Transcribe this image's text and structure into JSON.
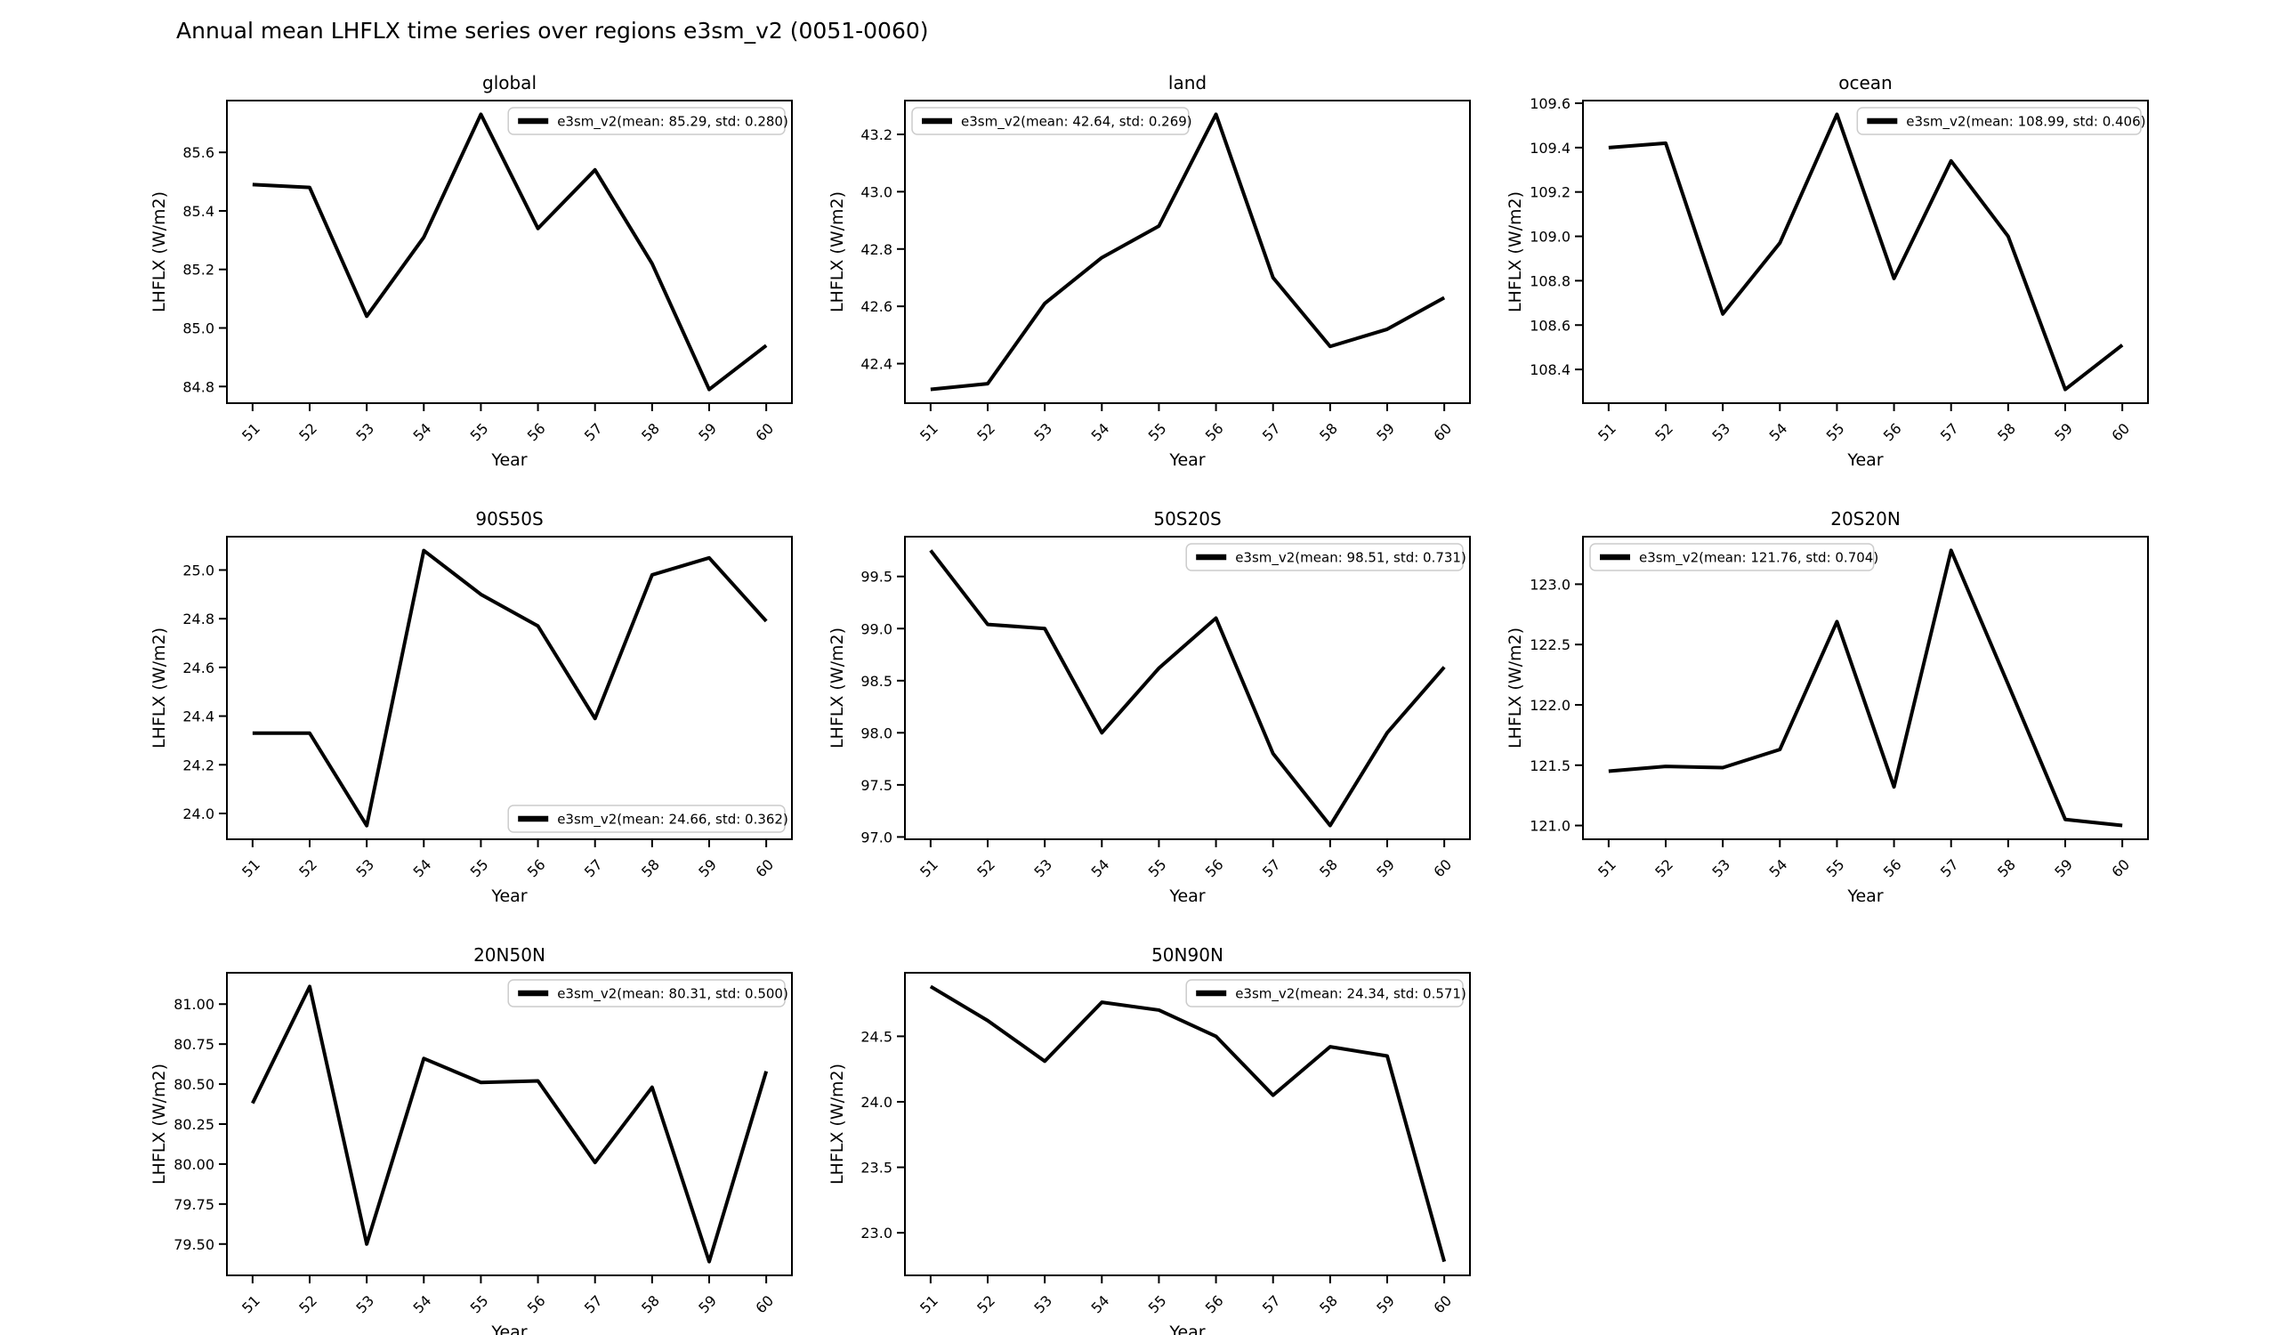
{
  "figure": {
    "title": "Annual mean LHFLX time series over regions e3sm_v2 (0051-0060)",
    "background_color": "#ffffff",
    "line_color": "#000000",
    "legend_edge_color": "#cccccc",
    "series_name": "e3sm_v2"
  },
  "chart_data": [
    {
      "type": "line",
      "title": "global",
      "xlabel": "Year",
      "ylabel": "LHFLX (W/m2)",
      "legend_label": "e3sm_v2(mean: 85.29, std: 0.280)",
      "legend_loc": "upper right",
      "x": [
        51,
        52,
        53,
        54,
        55,
        56,
        57,
        58,
        59,
        60
      ],
      "values": [
        85.49,
        85.48,
        85.04,
        85.31,
        85.73,
        85.34,
        85.54,
        85.22,
        84.79,
        84.94
      ],
      "yticks": [
        84.8,
        85.0,
        85.2,
        85.4,
        85.6
      ],
      "ytick_labels": [
        "84.8",
        "85.0",
        "85.2",
        "85.4",
        "85.6"
      ],
      "ylim": [
        84.743,
        85.777
      ],
      "xlim": [
        50.55,
        60.45
      ],
      "grid": false
    },
    {
      "type": "line",
      "title": "land",
      "xlabel": "Year",
      "ylabel": "LHFLX (W/m2)",
      "legend_label": "e3sm_v2(mean: 42.64, std: 0.269)",
      "legend_loc": "upper left",
      "x": [
        51,
        52,
        53,
        54,
        55,
        56,
        57,
        58,
        59,
        60
      ],
      "values": [
        42.31,
        42.33,
        42.61,
        42.77,
        42.88,
        43.27,
        42.7,
        42.46,
        42.52,
        42.63
      ],
      "yticks": [
        42.4,
        42.6,
        42.8,
        43.0,
        43.2
      ],
      "ytick_labels": [
        "42.4",
        "42.6",
        "42.8",
        "43.0",
        "43.2"
      ],
      "ylim": [
        42.262,
        43.318
      ],
      "xlim": [
        50.55,
        60.45
      ],
      "grid": false
    },
    {
      "type": "line",
      "title": "ocean",
      "xlabel": "Year",
      "ylabel": "LHFLX (W/m2)",
      "legend_label": "e3sm_v2(mean: 108.99, std: 0.406)",
      "legend_loc": "upper right",
      "x": [
        51,
        52,
        53,
        54,
        55,
        56,
        57,
        58,
        59,
        60
      ],
      "values": [
        109.4,
        109.42,
        108.65,
        108.97,
        109.55,
        108.81,
        109.34,
        109.0,
        108.31,
        108.51
      ],
      "yticks": [
        108.4,
        108.6,
        108.8,
        109.0,
        109.2,
        109.4,
        109.6
      ],
      "ytick_labels": [
        "108.4",
        "108.6",
        "108.8",
        "109.0",
        "109.2",
        "109.4",
        "109.6"
      ],
      "ylim": [
        108.248,
        109.612
      ],
      "xlim": [
        50.55,
        60.45
      ],
      "grid": false
    },
    {
      "type": "line",
      "title": "90S50S",
      "xlabel": "Year",
      "ylabel": "LHFLX (W/m2)",
      "legend_label": "e3sm_v2(mean: 24.66, std: 0.362)",
      "legend_loc": "lower right",
      "x": [
        51,
        52,
        53,
        54,
        55,
        56,
        57,
        58,
        59,
        60
      ],
      "values": [
        24.33,
        24.33,
        23.95,
        25.08,
        24.9,
        24.77,
        24.39,
        24.98,
        25.05,
        24.79
      ],
      "yticks": [
        24.0,
        24.2,
        24.4,
        24.6,
        24.8,
        25.0
      ],
      "ytick_labels": [
        "24.0",
        "24.2",
        "24.4",
        "24.6",
        "24.8",
        "25.0"
      ],
      "ylim": [
        23.894,
        25.137
      ],
      "xlim": [
        50.55,
        60.45
      ],
      "grid": false
    },
    {
      "type": "line",
      "title": "50S20S",
      "xlabel": "Year",
      "ylabel": "LHFLX (W/m2)",
      "legend_label": "e3sm_v2(mean: 98.51, std: 0.731)",
      "legend_loc": "upper right",
      "x": [
        51,
        52,
        53,
        54,
        55,
        56,
        57,
        58,
        59,
        60
      ],
      "values": [
        99.75,
        99.04,
        99.0,
        98.0,
        98.62,
        99.1,
        97.8,
        97.11,
        98.0,
        98.63
      ],
      "yticks": [
        97.0,
        97.5,
        98.0,
        98.5,
        99.0,
        99.5
      ],
      "ytick_labels": [
        "97.0",
        "97.5",
        "98.0",
        "98.5",
        "99.0",
        "99.5"
      ],
      "ylim": [
        96.978,
        99.882
      ],
      "xlim": [
        50.55,
        60.45
      ],
      "grid": false
    },
    {
      "type": "line",
      "title": "20S20N",
      "xlabel": "Year",
      "ylabel": "LHFLX (W/m2)",
      "legend_label": "e3sm_v2(mean: 121.76, std: 0.704)",
      "legend_loc": "upper left",
      "x": [
        51,
        52,
        53,
        54,
        55,
        56,
        57,
        58,
        59,
        60
      ],
      "values": [
        121.45,
        121.49,
        121.48,
        121.63,
        122.69,
        121.32,
        123.28,
        122.17,
        121.05,
        121.0
      ],
      "yticks": [
        121.0,
        121.5,
        122.0,
        122.5,
        123.0
      ],
      "ytick_labels": [
        "121.0",
        "121.5",
        "122.0",
        "122.5",
        "123.0"
      ],
      "ylim": [
        120.886,
        123.394
      ],
      "xlim": [
        50.55,
        60.45
      ],
      "grid": false
    },
    {
      "type": "line",
      "title": "20N50N",
      "xlabel": "Year",
      "ylabel": "LHFLX (W/m2)",
      "legend_label": "e3sm_v2(mean: 80.31, std: 0.500)",
      "legend_loc": "upper right",
      "x": [
        51,
        52,
        53,
        54,
        55,
        56,
        57,
        58,
        59,
        60
      ],
      "values": [
        80.38,
        81.11,
        79.5,
        80.66,
        80.51,
        80.52,
        80.01,
        80.48,
        79.39,
        80.58
      ],
      "yticks": [
        79.5,
        79.75,
        80.0,
        80.25,
        80.5,
        80.75,
        81.0
      ],
      "ytick_labels": [
        "79.50",
        "79.75",
        "80.00",
        "80.25",
        "80.50",
        "80.75",
        "81.00"
      ],
      "ylim": [
        79.304,
        81.196
      ],
      "xlim": [
        50.55,
        60.45
      ],
      "grid": false
    },
    {
      "type": "line",
      "title": "50N90N",
      "xlabel": "Year",
      "ylabel": "LHFLX (W/m2)",
      "legend_label": "e3sm_v2(mean: 24.34, std: 0.571)",
      "legend_loc": "upper right",
      "x": [
        51,
        52,
        53,
        54,
        55,
        56,
        57,
        58,
        59,
        60
      ],
      "values": [
        24.88,
        24.62,
        24.31,
        24.76,
        24.7,
        24.5,
        24.05,
        24.42,
        24.35,
        22.78
      ],
      "yticks": [
        23.0,
        23.5,
        24.0,
        24.5
      ],
      "ytick_labels": [
        "23.0",
        "23.5",
        "24.0",
        "24.5"
      ],
      "ylim": [
        22.675,
        24.985
      ],
      "xlim": [
        50.55,
        60.45
      ],
      "grid": false
    }
  ]
}
